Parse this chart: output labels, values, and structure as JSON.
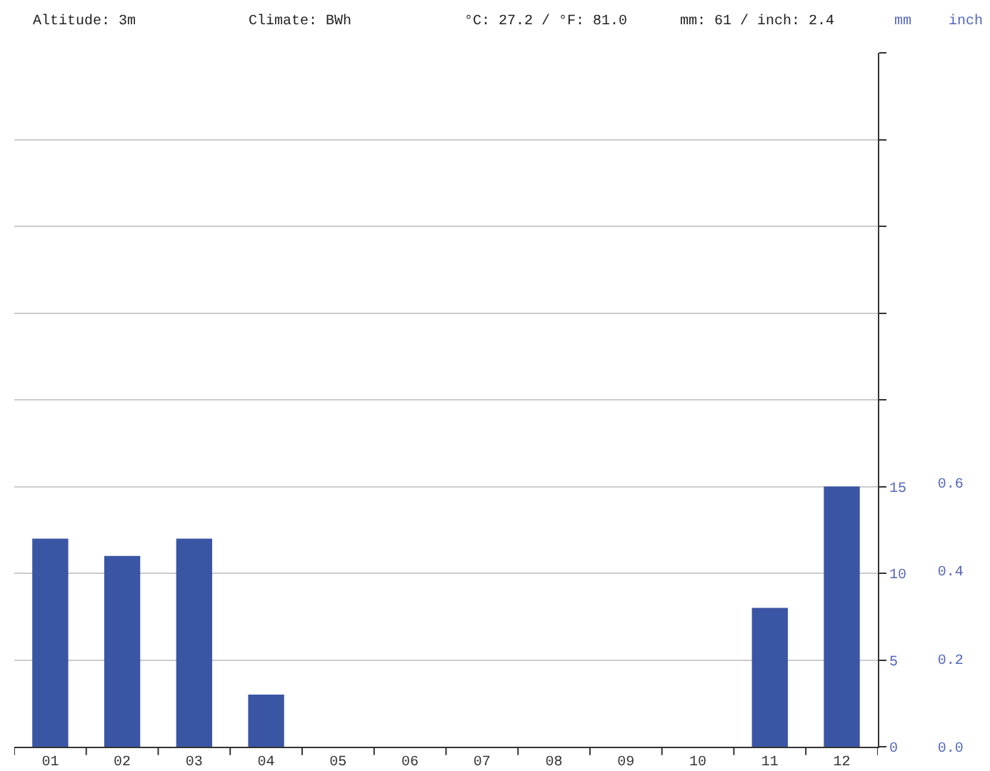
{
  "chart_data": {
    "type": "bar",
    "annotations": [
      "Altitude: 3m",
      "Climate: BWh",
      "°C: 27.2 / °F: 81.0",
      "mm: 61 / inch: 2.4"
    ],
    "ylabel": "mm",
    "y2label": "inch",
    "categories": [
      "01",
      "02",
      "03",
      "04",
      "05",
      "06",
      "07",
      "08",
      "09",
      "10",
      "11",
      "12"
    ],
    "series": [
      {
        "color": "#3a55a4",
        "values": [
          12,
          11,
          12,
          3,
          0,
          0,
          0,
          0,
          0,
          0,
          8,
          15
        ]
      }
    ],
    "ylim": [
      0,
      40
    ],
    "yticks": [
      0,
      5,
      10,
      15,
      {
        "value": 20,
        "label": null
      },
      {
        "value": 25,
        "label": null
      },
      {
        "value": 30,
        "label": null
      },
      {
        "value": 35,
        "label": null
      },
      {
        "value": 40,
        "label": null
      }
    ],
    "y2lim": [
      0,
      1.575
    ],
    "y2ticks": [
      {
        "value": 0,
        "label": "0.0"
      },
      0.2,
      0.4,
      0.6
    ],
    "grid": "y"
  }
}
